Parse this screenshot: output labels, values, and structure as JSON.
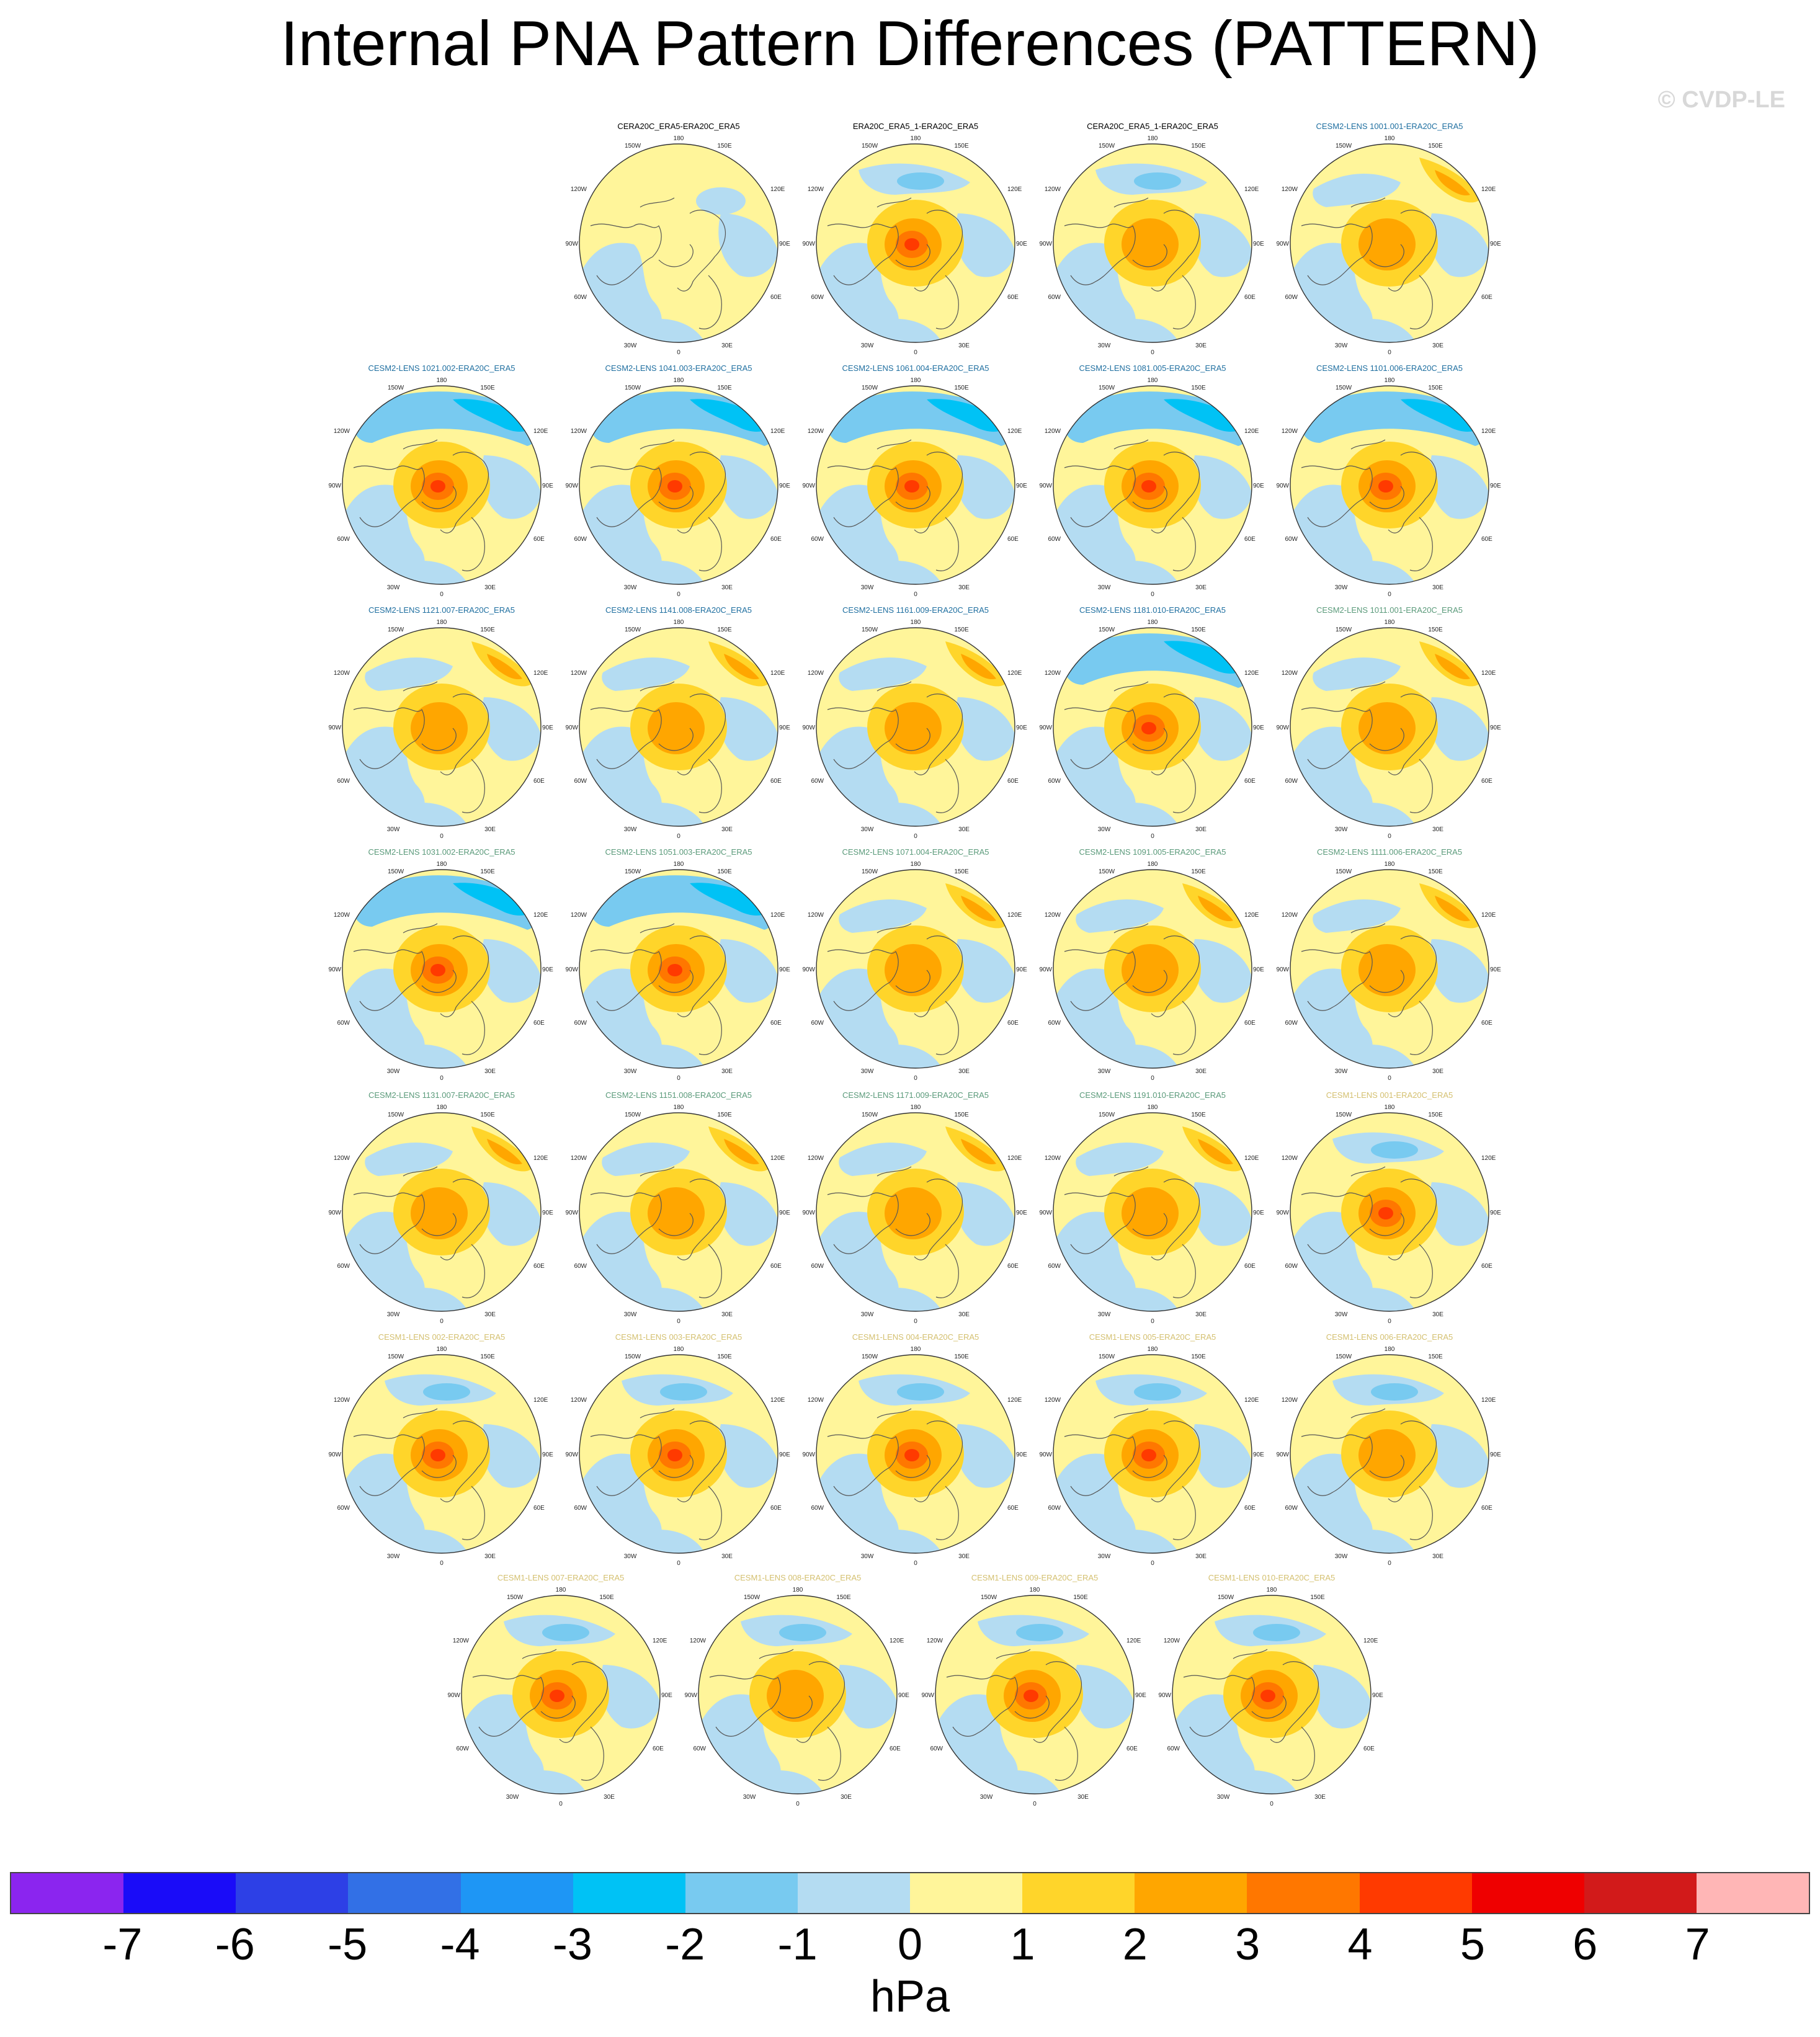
{
  "title": "Internal PNA Pattern Differences (PATTERN)",
  "copyright": "© CVDP-LE",
  "colorbar": {
    "units": "hPa",
    "ticks": [
      "-7",
      "-6",
      "-5",
      "-4",
      "-3",
      "-2",
      "-1",
      "0",
      "1",
      "2",
      "3",
      "4",
      "5",
      "6",
      "7"
    ],
    "colors": [
      "#8b25ef",
      "#1a0cf8",
      "#2d40e6",
      "#3270e6",
      "#1e96f5",
      "#00c2f5",
      "#78caf0",
      "#b4dcf2",
      "#fff59a",
      "#ffd52a",
      "#ffa600",
      "#ff7700",
      "#ff3a00",
      "#ef0000",
      "#d21a1a",
      "#ffb6b6"
    ]
  },
  "map_labels": {
    "top": "180",
    "tl": "150W",
    "tr": "150E",
    "ul": "120W",
    "ur": "120E",
    "left": "90W",
    "right": "90E",
    "ll": "60W",
    "lr": "60E",
    "bl": "30W",
    "br": "30E",
    "bottom": "0"
  },
  "panels": [
    {
      "title": "CERA20C_ERA5-ERA20C_ERA5",
      "title_color": "#000000",
      "pattern": "weak"
    },
    {
      "title": "ERA20C_ERA5_1-ERA20C_ERA5",
      "title_color": "#000000",
      "pattern": "center-strong"
    },
    {
      "title": "CERA20C_ERA5_1-ERA20C_ERA5",
      "title_color": "#000000",
      "pattern": "center"
    },
    {
      "title": "CESM2-LENS 1001.001-ERA20C_ERA5",
      "title_color": "#1f6fa0",
      "pattern": "pacific-pos"
    },
    {
      "title": "CESM2-LENS 1021.002-ERA20C_ERA5",
      "title_color": "#1f6fa0",
      "pattern": "pacific-neg"
    },
    {
      "title": "CESM2-LENS 1041.003-ERA20C_ERA5",
      "title_color": "#1f6fa0",
      "pattern": "pacific-neg"
    },
    {
      "title": "CESM2-LENS 1061.004-ERA20C_ERA5",
      "title_color": "#1f6fa0",
      "pattern": "pacific-neg"
    },
    {
      "title": "CESM2-LENS 1081.005-ERA20C_ERA5",
      "title_color": "#1f6fa0",
      "pattern": "pacific-neg"
    },
    {
      "title": "CESM2-LENS 1101.006-ERA20C_ERA5",
      "title_color": "#1f6fa0",
      "pattern": "pacific-neg"
    },
    {
      "title": "CESM2-LENS 1121.007-ERA20C_ERA5",
      "title_color": "#1f6fa0",
      "pattern": "pacific-pos"
    },
    {
      "title": "CESM2-LENS 1141.008-ERA20C_ERA5",
      "title_color": "#1f6fa0",
      "pattern": "pacific-pos"
    },
    {
      "title": "CESM2-LENS 1161.009-ERA20C_ERA5",
      "title_color": "#1f6fa0",
      "pattern": "pacific-pos"
    },
    {
      "title": "CESM2-LENS 1181.010-ERA20C_ERA5",
      "title_color": "#1f6fa0",
      "pattern": "pacific-neg"
    },
    {
      "title": "CESM2-LENS 1011.001-ERA20C_ERA5",
      "title_color": "#5a9a7a",
      "pattern": "pacific-pos"
    },
    {
      "title": "CESM2-LENS 1031.002-ERA20C_ERA5",
      "title_color": "#5a9a7a",
      "pattern": "pacific-neg"
    },
    {
      "title": "CESM2-LENS 1051.003-ERA20C_ERA5",
      "title_color": "#5a9a7a",
      "pattern": "pacific-neg"
    },
    {
      "title": "CESM2-LENS 1071.004-ERA20C_ERA5",
      "title_color": "#5a9a7a",
      "pattern": "pacific-pos"
    },
    {
      "title": "CESM2-LENS 1091.005-ERA20C_ERA5",
      "title_color": "#5a9a7a",
      "pattern": "pacific-pos"
    },
    {
      "title": "CESM2-LENS 1111.006-ERA20C_ERA5",
      "title_color": "#5a9a7a",
      "pattern": "pacific-pos"
    },
    {
      "title": "CESM2-LENS 1131.007-ERA20C_ERA5",
      "title_color": "#5a9a7a",
      "pattern": "pacific-pos"
    },
    {
      "title": "CESM2-LENS 1151.008-ERA20C_ERA5",
      "title_color": "#5a9a7a",
      "pattern": "pacific-pos"
    },
    {
      "title": "CESM2-LENS 1171.009-ERA20C_ERA5",
      "title_color": "#5a9a7a",
      "pattern": "pacific-pos"
    },
    {
      "title": "CESM2-LENS 1191.010-ERA20C_ERA5",
      "title_color": "#5a9a7a",
      "pattern": "pacific-pos"
    },
    {
      "title": "CESM1-LENS 001-ERA20C_ERA5",
      "title_color": "#d4c070",
      "pattern": "center-strong"
    },
    {
      "title": "CESM1-LENS 002-ERA20C_ERA5",
      "title_color": "#d4c070",
      "pattern": "center-strong"
    },
    {
      "title": "CESM1-LENS 003-ERA20C_ERA5",
      "title_color": "#d4c070",
      "pattern": "center-strong"
    },
    {
      "title": "CESM1-LENS 004-ERA20C_ERA5",
      "title_color": "#d4c070",
      "pattern": "center-strong"
    },
    {
      "title": "CESM1-LENS 005-ERA20C_ERA5",
      "title_color": "#d4c070",
      "pattern": "center-strong"
    },
    {
      "title": "CESM1-LENS 006-ERA20C_ERA5",
      "title_color": "#d4c070",
      "pattern": "center"
    },
    {
      "title": "CESM1-LENS 007-ERA20C_ERA5",
      "title_color": "#d4c070",
      "pattern": "center-strong"
    },
    {
      "title": "CESM1-LENS 008-ERA20C_ERA5",
      "title_color": "#d4c070",
      "pattern": "center"
    },
    {
      "title": "CESM1-LENS 009-ERA20C_ERA5",
      "title_color": "#d4c070",
      "pattern": "center-strong"
    },
    {
      "title": "CESM1-LENS 010-ERA20C_ERA5",
      "title_color": "#d4c070",
      "pattern": "center-strong"
    }
  ]
}
